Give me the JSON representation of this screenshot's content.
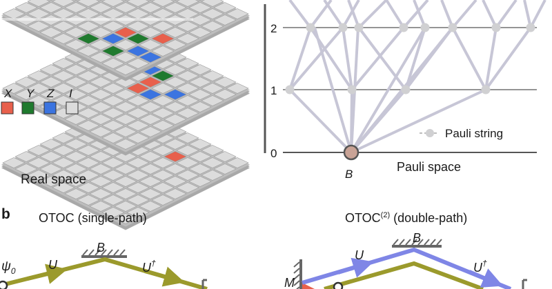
{
  "legend": {
    "items": [
      {
        "label": "X",
        "color": "#e8604c"
      },
      {
        "label": "Y",
        "color": "#1f7a2e"
      },
      {
        "label": "Z",
        "color": "#3b74e0"
      },
      {
        "label": "I",
        "color": "#dcdcdc"
      }
    ]
  },
  "real_space_label": "Real space",
  "pauli_space": {
    "label": "Pauli space",
    "axis_ticks": [
      "0",
      "1",
      "2"
    ],
    "origin_label": "B",
    "legend_label": "Pauli string"
  },
  "panel_b": {
    "panel_label": "b",
    "left_title": "OTOC (single-path)",
    "right_title_prefix": "OTOC",
    "right_title_sup": "(2)",
    "right_title_suffix": " (double-path)",
    "psi_label": "ψ",
    "psi_sub": "0",
    "u_label": "U",
    "b_label": "B",
    "udag_base": "U",
    "dagger": "†",
    "m_label": "M",
    "path_colors": {
      "single": "#9b9a2c",
      "double_top": "#7f86e6",
      "double_bottom": "#9b9a2c"
    }
  },
  "colors": {
    "node": "#d0d0d2",
    "edge": "#c7c6d6",
    "origin": "#c9a396",
    "axis": "#555555"
  }
}
